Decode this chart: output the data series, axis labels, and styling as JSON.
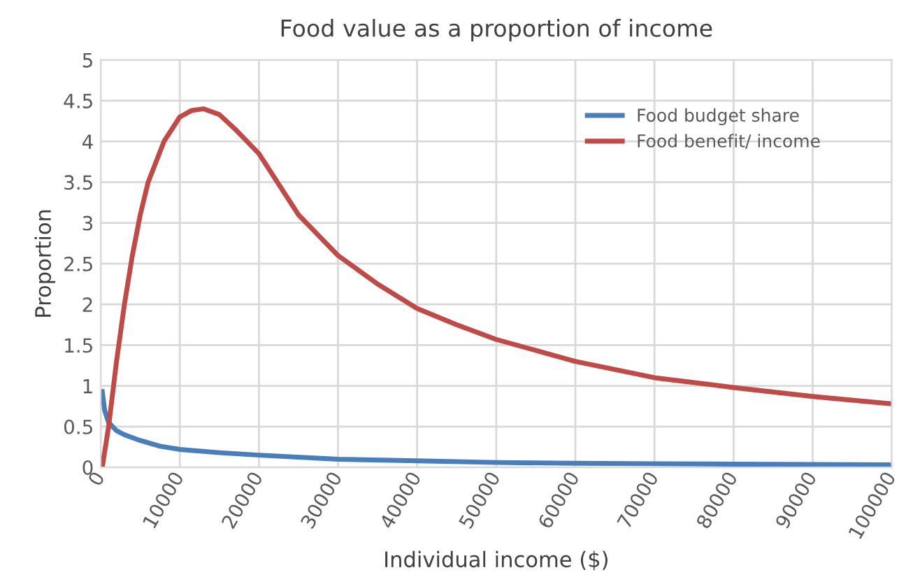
{
  "chart_data": {
    "type": "line",
    "title": "Food value as a proportion of income",
    "xlabel": "Individual income ($)",
    "ylabel": "Proportion",
    "xlim": [
      0,
      100000
    ],
    "xticks": [
      0,
      10000,
      20000,
      30000,
      40000,
      50000,
      60000,
      70000,
      80000,
      90000,
      100000
    ],
    "ylim": [
      0,
      5
    ],
    "yticks": [
      0,
      0.5,
      1,
      1.5,
      2,
      2.5,
      3,
      3.5,
      4,
      4.5,
      5
    ],
    "grid": true,
    "legend": "top right",
    "marker": "none",
    "line_style": "solid",
    "series": [
      {
        "name": "Food budget share",
        "color": "#4a7ebb",
        "x": [
          200,
          500,
          1000,
          2000,
          3000,
          5000,
          7500,
          10000,
          15000,
          20000,
          30000,
          40000,
          50000,
          60000,
          70000,
          80000,
          90000,
          100000
        ],
        "values": [
          0.93,
          0.7,
          0.55,
          0.45,
          0.4,
          0.33,
          0.26,
          0.22,
          0.18,
          0.15,
          0.1,
          0.08,
          0.06,
          0.05,
          0.045,
          0.04,
          0.035,
          0.03
        ]
      },
      {
        "name": "Food benefit/ income",
        "color": "#be4b48",
        "x": [
          200,
          1000,
          2000,
          3000,
          4000,
          5000,
          6000,
          8000,
          10000,
          11500,
          13000,
          15000,
          17000,
          20000,
          23000,
          25000,
          27000,
          30000,
          35000,
          40000,
          45000,
          50000,
          60000,
          70000,
          80000,
          90000,
          100000
        ],
        "values": [
          0,
          0.5,
          1.3,
          2.0,
          2.6,
          3.1,
          3.5,
          4.0,
          4.3,
          4.38,
          4.4,
          4.33,
          4.15,
          3.85,
          3.4,
          3.1,
          2.9,
          2.6,
          2.25,
          1.95,
          1.75,
          1.57,
          1.3,
          1.1,
          0.98,
          0.87,
          0.78
        ]
      }
    ]
  }
}
